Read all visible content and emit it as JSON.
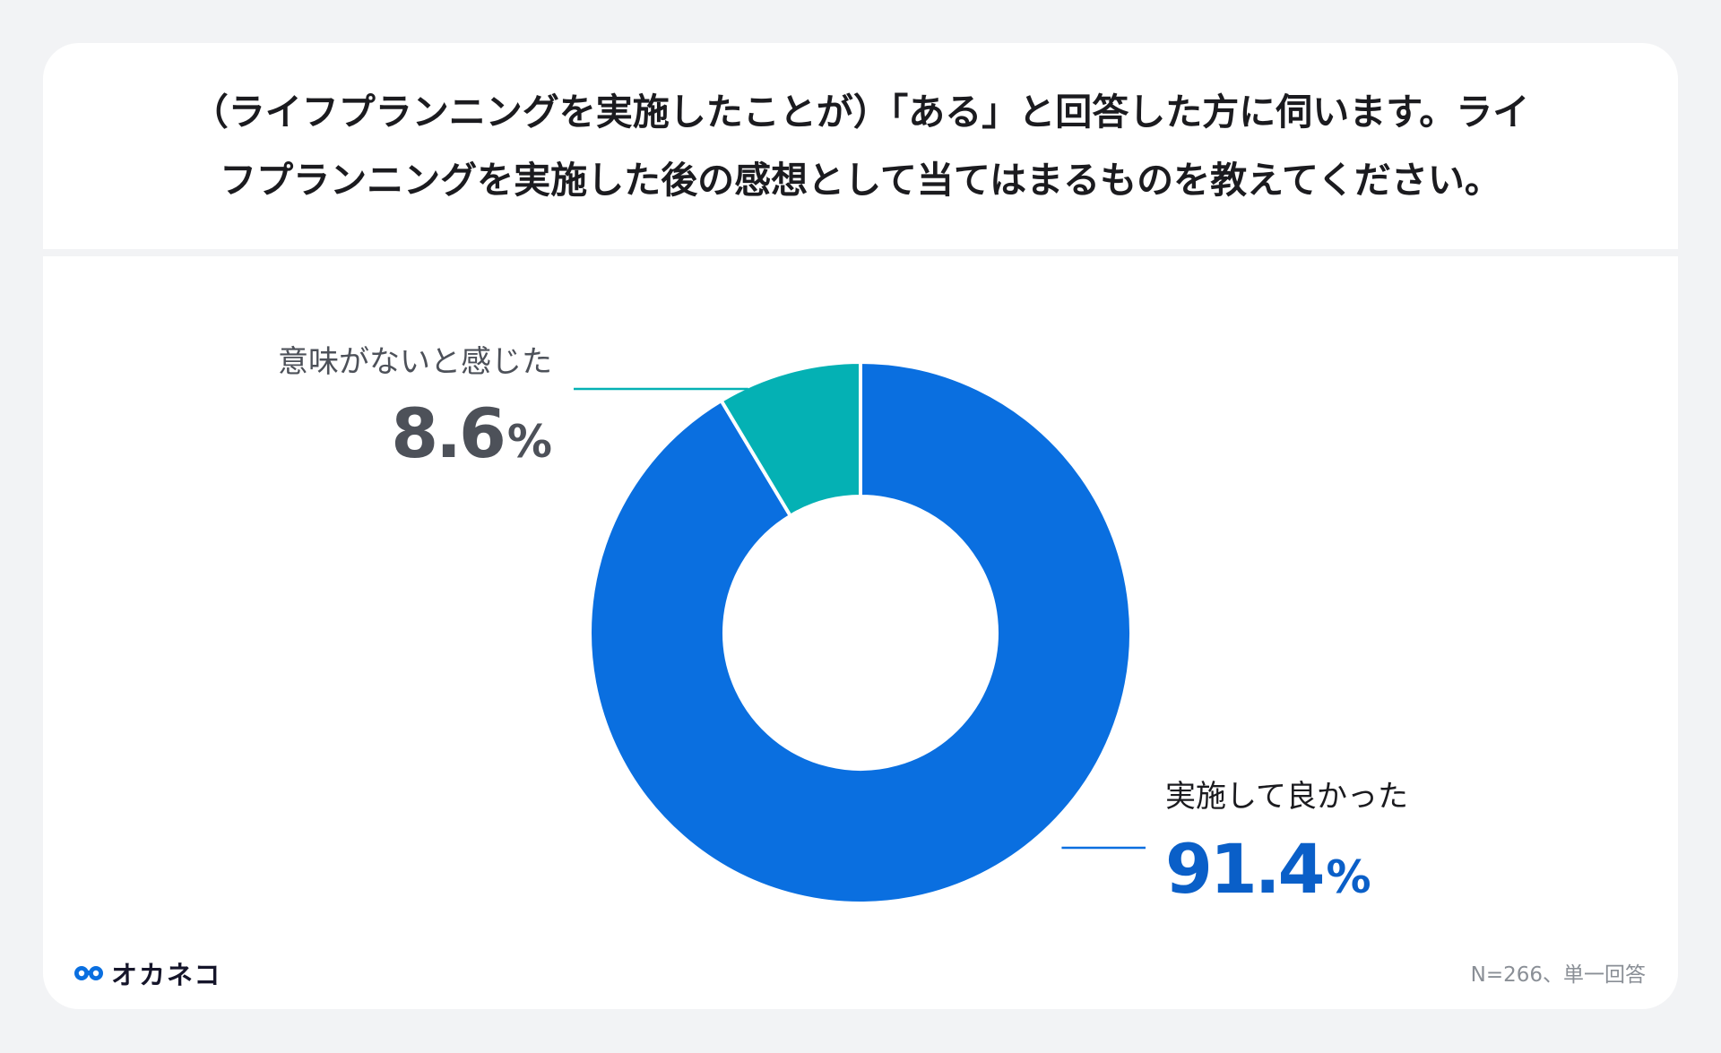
{
  "title_line1": "（ライフプランニングを実施したことが）「ある」と回答した方に伺います。ライ",
  "title_line2": "フプランニングを実施した後の感想として当てはまるものを教えてください。",
  "brand": {
    "name": "オカネコ",
    "icon": "glasses-icon",
    "color": "#0a6fe0"
  },
  "footnote": "N=266、単一回答",
  "colors": {
    "background": "#f2f3f5",
    "card": "#ffffff",
    "blue": "#0a6fe0",
    "teal": "#04b1b4",
    "label_gray": "#4d5159"
  },
  "chart_data": {
    "type": "pie",
    "donut": true,
    "title": "",
    "slices": [
      {
        "label": "実施して良かった",
        "value": 91.4,
        "display": "91.4",
        "unit": "%",
        "color": "#0a6fe0",
        "label_color": "#0a5fc8"
      },
      {
        "label": "意味がないと感じた",
        "value": 8.6,
        "display": "8.6",
        "unit": "%",
        "color": "#04b1b4",
        "label_color": "#4d5159"
      }
    ],
    "start_angle_deg": 0,
    "direction": "clockwise",
    "legend": "none"
  }
}
